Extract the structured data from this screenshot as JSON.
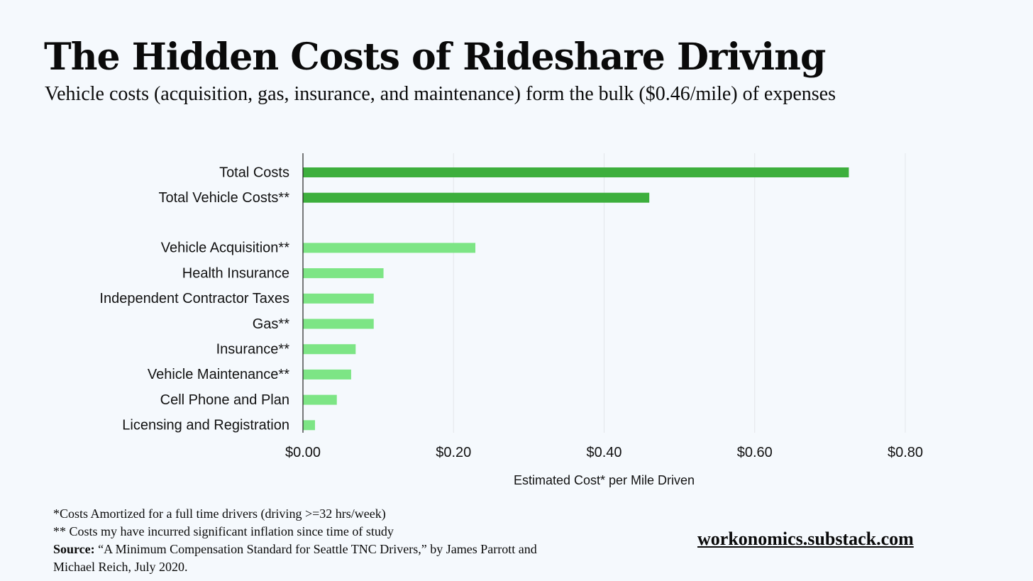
{
  "header": {
    "title": "The Hidden Costs of Rideshare Driving",
    "subtitle": "Vehicle costs (acquisition, gas, insurance, and maintenance) form the bulk ($0.46/mile) of expenses"
  },
  "chart_data": {
    "type": "bar",
    "orientation": "horizontal",
    "categories": [
      "Total Costs",
      "Total Vehicle Costs**",
      "Vehicle Acquisition**",
      "Health Insurance",
      "Independent Contractor Taxes",
      "Gas**",
      "Insurance**",
      "Vehicle Maintenance**",
      "Cell Phone and Plan",
      "Licensing and Registration"
    ],
    "values": [
      0.725,
      0.46,
      0.229,
      0.107,
      0.094,
      0.094,
      0.07,
      0.064,
      0.045,
      0.016
    ],
    "groups": [
      "total",
      "total",
      "item",
      "item",
      "item",
      "item",
      "item",
      "item",
      "item",
      "item"
    ],
    "colors": {
      "total": "#3daf3d",
      "item": "#7de585",
      "grid": "#e3e6ea",
      "axis": "#222222"
    },
    "xlim": [
      0,
      0.8
    ],
    "xticks": [
      0,
      0.2,
      0.4,
      0.6,
      0.8
    ],
    "xtick_labels": [
      "$0.00",
      "$0.20",
      "$0.40",
      "$0.60",
      "$0.80"
    ],
    "xlabel": "Estimated Cost* per Mile Driven",
    "ylabel": "",
    "grid": true,
    "legend": "none"
  },
  "footnotes": {
    "note1": "*Costs Amortized for a full time drivers (driving >=32 hrs/week)",
    "note2": "** Costs my have incurred significant inflation since time of study",
    "source_label": "Source:",
    "source_text": "“A Minimum Compensation Standard for Seattle TNC Drivers,” by James Parrott and Michael Reich, July 2020."
  },
  "site": "workonomics.substack.com"
}
